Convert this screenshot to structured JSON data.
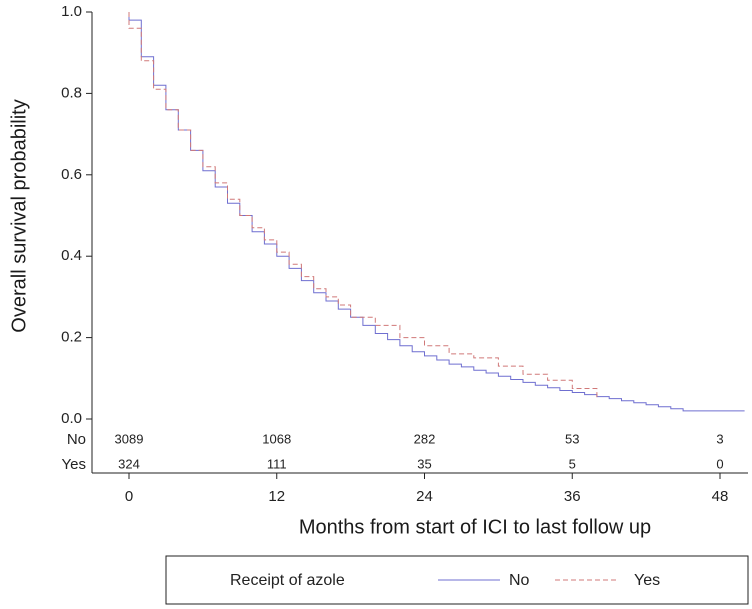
{
  "chart_data": {
    "type": "line",
    "subtype": "kaplan-meier",
    "title": "",
    "xlabel": "Months from start of ICI to last follow up",
    "ylabel": "Overall survival probability",
    "xlim": [
      0,
      50
    ],
    "ylim": [
      0,
      1
    ],
    "xticks": [
      0,
      12,
      24,
      36,
      48
    ],
    "yticks": [
      0.0,
      0.2,
      0.4,
      0.6,
      0.8,
      1.0
    ],
    "ytick_labels": [
      "0.0",
      "0.2",
      "0.4",
      "0.6",
      "0.8",
      "1.0"
    ],
    "grid": false,
    "series": [
      {
        "name": "No",
        "color": "#6f6fd0",
        "dash": "solid",
        "x": [
          0,
          1,
          2,
          3,
          4,
          5,
          6,
          7,
          8,
          9,
          10,
          11,
          12,
          13,
          14,
          15,
          16,
          17,
          18,
          19,
          20,
          21,
          22,
          23,
          24,
          25,
          26,
          27,
          28,
          29,
          30,
          31,
          32,
          33,
          34,
          35,
          36,
          37,
          38,
          39,
          40,
          41,
          42,
          43,
          44,
          45,
          46,
          50
        ],
        "y": [
          0.98,
          0.89,
          0.82,
          0.76,
          0.71,
          0.66,
          0.61,
          0.57,
          0.53,
          0.5,
          0.46,
          0.43,
          0.4,
          0.37,
          0.34,
          0.31,
          0.29,
          0.27,
          0.25,
          0.23,
          0.21,
          0.195,
          0.18,
          0.165,
          0.155,
          0.145,
          0.135,
          0.128,
          0.12,
          0.113,
          0.105,
          0.097,
          0.09,
          0.083,
          0.077,
          0.07,
          0.065,
          0.06,
          0.055,
          0.05,
          0.045,
          0.04,
          0.035,
          0.03,
          0.025,
          0.02,
          0.02,
          0.02
        ]
      },
      {
        "name": "Yes",
        "color": "#d07878",
        "dash": "dashed",
        "x": [
          0,
          1,
          2,
          3,
          4,
          5,
          6,
          7,
          8,
          9,
          10,
          11,
          12,
          13,
          14,
          15,
          16,
          17,
          18,
          20,
          22,
          24,
          26,
          28,
          30,
          32,
          34,
          36,
          38
        ],
        "y": [
          0.96,
          0.88,
          0.81,
          0.76,
          0.71,
          0.66,
          0.62,
          0.58,
          0.54,
          0.5,
          0.47,
          0.44,
          0.41,
          0.38,
          0.35,
          0.32,
          0.3,
          0.28,
          0.25,
          0.23,
          0.2,
          0.18,
          0.16,
          0.15,
          0.13,
          0.11,
          0.095,
          0.075,
          0.05
        ]
      }
    ],
    "risk_table": {
      "times": [
        0,
        12,
        24,
        36,
        48
      ],
      "rows": [
        {
          "label": "No",
          "counts": [
            "3089",
            "1068",
            "282",
            "53",
            "3"
          ]
        },
        {
          "label": "Yes",
          "counts": [
            "324",
            "111",
            "35",
            "5",
            "0"
          ]
        }
      ]
    },
    "legend": {
      "title": "Receipt of azole",
      "entries": [
        "No",
        "Yes"
      ],
      "placement": "bottom"
    }
  }
}
